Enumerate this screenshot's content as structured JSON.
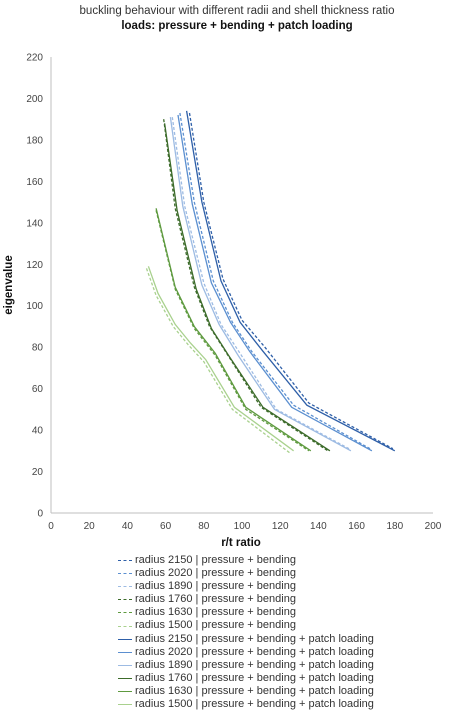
{
  "chart_data": {
    "type": "line",
    "title": "buckling behaviour with different radii and shell thickness ratio",
    "subtitle": "loads: pressure + bending + patch loading",
    "xlabel": "r/t ratio",
    "ylabel": "eigenvalue",
    "xlim": [
      0,
      200
    ],
    "ylim": [
      0,
      220
    ],
    "xticks": [
      "0",
      "20",
      "40",
      "60",
      "80",
      "100",
      "120",
      "140",
      "160",
      "180",
      "200"
    ],
    "yticks": [
      "0",
      "20",
      "40",
      "60",
      "80",
      "100",
      "120",
      "140",
      "160",
      "180",
      "200",
      "220"
    ],
    "grid": false,
    "legend_position": "bottom",
    "series": [
      {
        "name": "radius 2150 | pressure + bending",
        "color": "#2e5fa8",
        "dash": "dashed",
        "x": [
          72.5,
          80,
          90,
          100,
          112,
          135,
          179
        ],
        "y": [
          193,
          150,
          113,
          93,
          80,
          53,
          31
        ]
      },
      {
        "name": "radius 2020 | pressure + bending",
        "color": "#5b8fd0",
        "dash": "dashed",
        "x": [
          67.5,
          75,
          85,
          95,
          105,
          127,
          167
        ],
        "y": [
          193,
          150,
          112,
          92,
          78,
          52,
          31
        ]
      },
      {
        "name": "radius 1890 | pressure + bending",
        "color": "#9dbbe3",
        "dash": "dashed",
        "x": [
          63.5,
          70,
          80,
          89,
          99,
          118,
          156
        ],
        "y": [
          191,
          148,
          111,
          91,
          77,
          50,
          31
        ]
      },
      {
        "name": "radius 1760 | pressure + bending",
        "color": "#3c6b2a",
        "dash": "dashed",
        "x": [
          59,
          65,
          75,
          83,
          92,
          110,
          145
        ],
        "y": [
          190,
          147,
          109,
          90,
          77,
          51,
          30
        ]
      },
      {
        "name": "radius 1630 | pressure + bending",
        "color": "#5e9a3f",
        "dash": "dashed",
        "x": [
          55,
          65,
          75,
          86,
          102,
          135
        ],
        "y": [
          146,
          108,
          89,
          76,
          50,
          30
        ]
      },
      {
        "name": "radius 1500 | pressure + bending",
        "color": "#a9d18e",
        "dash": "dashed",
        "x": [
          50,
          55,
          64,
          72,
          80,
          95,
          125
        ],
        "y": [
          118,
          105,
          90,
          81,
          73,
          50,
          29
        ]
      },
      {
        "name": "radius 2150 | pressure + bending + patch loading",
        "color": "#2e5fa8",
        "dash": "solid",
        "x": [
          71,
          79,
          89,
          99,
          111,
          134,
          180
        ],
        "y": [
          194,
          150,
          112,
          92,
          78,
          52,
          30
        ]
      },
      {
        "name": "radius 2020 | pressure + bending + patch loading",
        "color": "#5b8fd0",
        "dash": "solid",
        "x": [
          66.5,
          74,
          84,
          94,
          104,
          126,
          168
        ],
        "y": [
          192,
          149,
          111,
          92,
          78,
          51,
          30
        ]
      },
      {
        "name": "radius 1890 | pressure + bending + patch loading",
        "color": "#9dbbe3",
        "dash": "solid",
        "x": [
          62.5,
          69,
          79,
          88,
          98,
          117,
          157
        ],
        "y": [
          191,
          148,
          110,
          91,
          76,
          50,
          30
        ]
      },
      {
        "name": "radius 1760 | pressure + bending + patch loading",
        "color": "#3c6b2a",
        "dash": "solid",
        "x": [
          59.5,
          66,
          76,
          84,
          93,
          111,
          146
        ],
        "y": [
          188,
          146,
          108,
          89,
          76,
          51,
          30
        ]
      },
      {
        "name": "radius 1630 | pressure + bending + patch loading",
        "color": "#5e9a3f",
        "dash": "solid",
        "x": [
          55,
          65,
          75,
          86,
          102,
          136
        ],
        "y": [
          147,
          109,
          90,
          77,
          51,
          30
        ]
      },
      {
        "name": "radius 1500 | pressure + bending + patch loading",
        "color": "#a9d18e",
        "dash": "solid",
        "x": [
          51,
          56,
          65,
          73,
          81,
          96,
          127
        ],
        "y": [
          119,
          106,
          91,
          82,
          74,
          51,
          30
        ]
      }
    ]
  }
}
